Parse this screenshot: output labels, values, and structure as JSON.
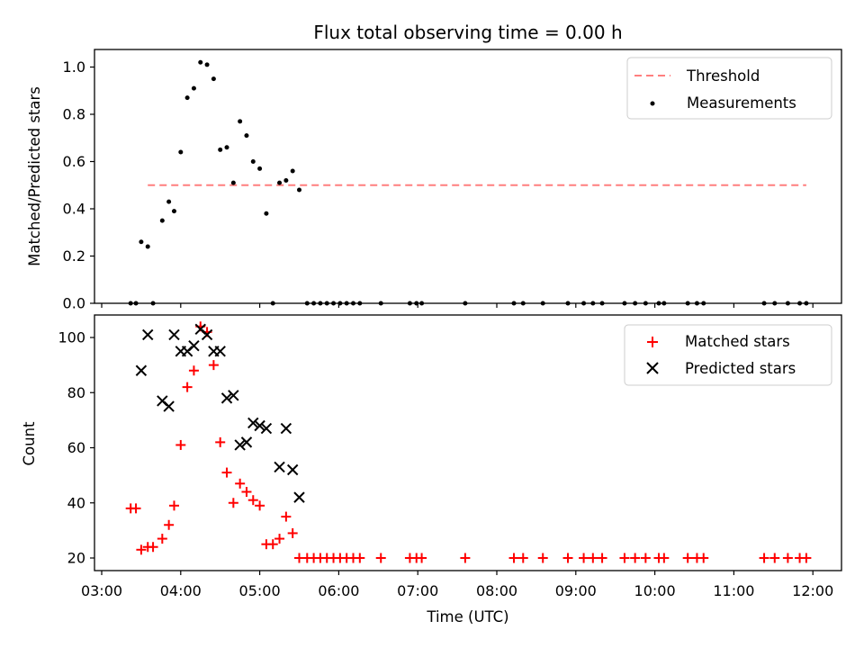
{
  "chart_data": [
    {
      "type": "scatter",
      "title": "Flux total observing time = 0.00 h",
      "xlabel": "",
      "ylabel": "Matched/Predicted stars",
      "xlim": [
        "03:00",
        "12:00"
      ],
      "ylim": [
        0,
        1.08
      ],
      "yticks": [
        0.0,
        0.2,
        0.4,
        0.6,
        0.8,
        1.0
      ],
      "ytick_labels": [
        "0.0",
        "0.2",
        "0.4",
        "0.6",
        "0.8",
        "1.0"
      ],
      "grid": false,
      "legend_position": "top-right",
      "threshold": {
        "name": "Threshold",
        "y": 0.5,
        "x_start": "03:35",
        "x_end": "11:55",
        "color": "#ff7f7f",
        "style": "dashed"
      },
      "series": [
        {
          "name": "Measurements",
          "color": "#000000",
          "marker": "dot",
          "points": [
            [
              "03:22",
              0.0
            ],
            [
              "03:26",
              0.0
            ],
            [
              "03:30",
              0.26
            ],
            [
              "03:35",
              0.24
            ],
            [
              "03:39",
              0.0
            ],
            [
              "03:46",
              0.35
            ],
            [
              "03:51",
              0.43
            ],
            [
              "03:55",
              0.39
            ],
            [
              "04:00",
              0.64
            ],
            [
              "04:05",
              0.87
            ],
            [
              "04:10",
              0.91
            ],
            [
              "04:15",
              1.02
            ],
            [
              "04:20",
              1.01
            ],
            [
              "04:25",
              0.95
            ],
            [
              "04:30",
              0.65
            ],
            [
              "04:35",
              0.66
            ],
            [
              "04:40",
              0.51
            ],
            [
              "04:45",
              0.77
            ],
            [
              "04:50",
              0.71
            ],
            [
              "04:55",
              0.6
            ],
            [
              "05:00",
              0.57
            ],
            [
              "05:05",
              0.38
            ],
            [
              "05:10",
              0.0
            ],
            [
              "05:15",
              0.51
            ],
            [
              "05:20",
              0.52
            ],
            [
              "05:25",
              0.56
            ],
            [
              "05:30",
              0.48
            ],
            [
              "05:36",
              0.0
            ],
            [
              "05:41",
              0.0
            ],
            [
              "05:46",
              0.0
            ],
            [
              "05:51",
              0.0
            ],
            [
              "05:56",
              0.0
            ],
            [
              "06:01",
              0.0
            ],
            [
              "06:06",
              0.0
            ],
            [
              "06:11",
              0.0
            ],
            [
              "06:16",
              0.0
            ],
            [
              "06:32",
              0.0
            ],
            [
              "06:54",
              0.0
            ],
            [
              "06:59",
              0.0
            ],
            [
              "07:03",
              0.0
            ],
            [
              "07:36",
              0.0
            ],
            [
              "08:13",
              0.0
            ],
            [
              "08:20",
              0.0
            ],
            [
              "08:35",
              0.0
            ],
            [
              "08:54",
              0.0
            ],
            [
              "09:06",
              0.0
            ],
            [
              "09:13",
              0.0
            ],
            [
              "09:20",
              0.0
            ],
            [
              "09:37",
              0.0
            ],
            [
              "09:45",
              0.0
            ],
            [
              "09:53",
              0.0
            ],
            [
              "10:03",
              0.0
            ],
            [
              "10:07",
              0.0
            ],
            [
              "10:25",
              0.0
            ],
            [
              "10:32",
              0.0
            ],
            [
              "10:37",
              0.0
            ],
            [
              "11:23",
              0.0
            ],
            [
              "11:31",
              0.0
            ],
            [
              "11:41",
              0.0
            ],
            [
              "11:50",
              0.0
            ],
            [
              "11:55",
              0.0
            ]
          ]
        }
      ]
    },
    {
      "type": "scatter",
      "title": "",
      "xlabel": "Time (UTC)",
      "ylabel": "Count",
      "xlim": [
        "03:00",
        "12:00"
      ],
      "xtick_labels": [
        "03:00",
        "04:00",
        "05:00",
        "06:00",
        "07:00",
        "08:00",
        "09:00",
        "10:00",
        "11:00",
        "12:00"
      ],
      "ylim": [
        15.5,
        108
      ],
      "yticks": [
        20,
        40,
        60,
        80,
        100
      ],
      "ytick_labels": [
        "20",
        "40",
        "60",
        "80",
        "100"
      ],
      "grid": false,
      "legend_position": "top-right",
      "series": [
        {
          "name": "Matched stars",
          "color": "#ff0000",
          "marker": "plus",
          "points": [
            [
              "03:22",
              38
            ],
            [
              "03:26",
              38
            ],
            [
              "03:30",
              23
            ],
            [
              "03:35",
              24
            ],
            [
              "03:39",
              24
            ],
            [
              "03:46",
              27
            ],
            [
              "03:51",
              32
            ],
            [
              "03:55",
              39
            ],
            [
              "04:00",
              61
            ],
            [
              "04:05",
              82
            ],
            [
              "04:10",
              88
            ],
            [
              "04:15",
              104
            ],
            [
              "04:20",
              102
            ],
            [
              "04:25",
              90
            ],
            [
              "04:30",
              62
            ],
            [
              "04:35",
              51
            ],
            [
              "04:40",
              40
            ],
            [
              "04:45",
              47
            ],
            [
              "04:50",
              44
            ],
            [
              "04:55",
              41
            ],
            [
              "05:00",
              39
            ],
            [
              "05:05",
              25
            ],
            [
              "05:10",
              25
            ],
            [
              "05:15",
              27
            ],
            [
              "05:20",
              35
            ],
            [
              "05:25",
              29
            ],
            [
              "05:30",
              20
            ],
            [
              "05:36",
              20
            ],
            [
              "05:41",
              20
            ],
            [
              "05:46",
              20
            ],
            [
              "05:51",
              20
            ],
            [
              "05:56",
              20
            ],
            [
              "06:01",
              20
            ],
            [
              "06:06",
              20
            ],
            [
              "06:11",
              20
            ],
            [
              "06:16",
              20
            ],
            [
              "06:32",
              20
            ],
            [
              "06:54",
              20
            ],
            [
              "06:59",
              20
            ],
            [
              "07:03",
              20
            ],
            [
              "07:36",
              20
            ],
            [
              "08:13",
              20
            ],
            [
              "08:20",
              20
            ],
            [
              "08:35",
              20
            ],
            [
              "08:54",
              20
            ],
            [
              "09:06",
              20
            ],
            [
              "09:13",
              20
            ],
            [
              "09:20",
              20
            ],
            [
              "09:37",
              20
            ],
            [
              "09:45",
              20
            ],
            [
              "09:53",
              20
            ],
            [
              "10:03",
              20
            ],
            [
              "10:07",
              20
            ],
            [
              "10:25",
              20
            ],
            [
              "10:32",
              20
            ],
            [
              "10:37",
              20
            ],
            [
              "11:23",
              20
            ],
            [
              "11:31",
              20
            ],
            [
              "11:41",
              20
            ],
            [
              "11:50",
              20
            ],
            [
              "11:55",
              20
            ]
          ]
        },
        {
          "name": "Predicted stars",
          "color": "#000000",
          "marker": "x",
          "points": [
            [
              "03:30",
              88
            ],
            [
              "03:35",
              101
            ],
            [
              "03:46",
              77
            ],
            [
              "03:51",
              75
            ],
            [
              "03:55",
              101
            ],
            [
              "04:00",
              95
            ],
            [
              "04:05",
              95
            ],
            [
              "04:10",
              97
            ],
            [
              "04:15",
              103
            ],
            [
              "04:20",
              101
            ],
            [
              "04:25",
              95
            ],
            [
              "04:30",
              95
            ],
            [
              "04:35",
              78
            ],
            [
              "04:40",
              79
            ],
            [
              "04:45",
              61
            ],
            [
              "04:50",
              62
            ],
            [
              "04:55",
              69
            ],
            [
              "05:00",
              68
            ],
            [
              "05:05",
              67
            ],
            [
              "05:15",
              53
            ],
            [
              "05:20",
              67
            ],
            [
              "05:25",
              52
            ],
            [
              "05:30",
              42
            ]
          ]
        }
      ]
    }
  ]
}
